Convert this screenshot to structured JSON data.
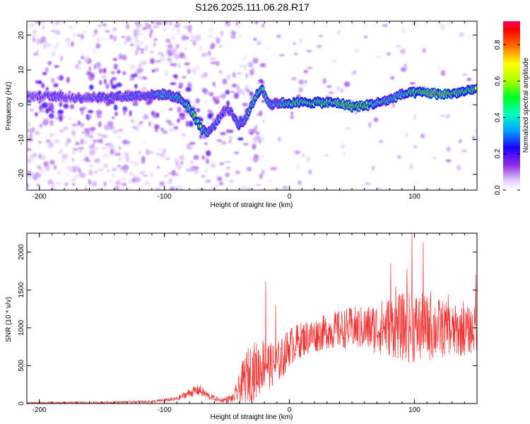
{
  "figure_title": "S126.2025.111.06.28.R17",
  "chart_data": [
    {
      "type": "heatmap",
      "title": "",
      "xlabel": "Height of straight line (km)",
      "ylabel": "Frequency (Hz)",
      "xlim": [
        -210,
        150
      ],
      "ylim": [
        -24.5,
        24
      ],
      "x_ticks": [
        -200,
        -100,
        0,
        100
      ],
      "y_ticks": [
        -20,
        -10,
        0,
        10,
        20
      ],
      "colorbar": {
        "label": "Normalized spectral amplitude",
        "range": [
          0,
          0.93
        ],
        "ticks": [
          0.0,
          0.2,
          0.4,
          0.6,
          0.8
        ],
        "tick_labels": [
          "0.0",
          "0.2",
          "0.4",
          "0.6",
          "0.8"
        ]
      },
      "ridge": {
        "x": [
          -205,
          -190,
          -170,
          -150,
          -130,
          -110,
          -100,
          -92,
          -85,
          -80,
          -75,
          -70,
          -65,
          -60,
          -55,
          -50,
          -45,
          -40,
          -35,
          -30,
          -26,
          -22,
          -18,
          -15,
          -10,
          0,
          10,
          20,
          30,
          40,
          50,
          60,
          70,
          80,
          90,
          100,
          110,
          120,
          130,
          140,
          150
        ],
        "freq": [
          2.5,
          2.5,
          2.0,
          2.2,
          2.5,
          2.8,
          3.0,
          2.5,
          1.0,
          -1.0,
          -4.0,
          -7.0,
          -8.0,
          -6.0,
          -3.0,
          -1.0,
          -3.0,
          -6.0,
          -4.0,
          0.0,
          3.0,
          5.0,
          1.5,
          0.0,
          0.5,
          0.5,
          0.6,
          0.7,
          0.6,
          0.5,
          -0.5,
          -0.3,
          0.5,
          1.5,
          3.0,
          3.5,
          3.5,
          3.0,
          3.2,
          3.8,
          4.5
        ],
        "amplitude": [
          0.25,
          0.3,
          0.3,
          0.35,
          0.35,
          0.4,
          0.45,
          0.5,
          0.55,
          0.7,
          0.75,
          0.65,
          0.5,
          0.4,
          0.3,
          0.3,
          0.35,
          0.45,
          0.5,
          0.55,
          0.6,
          0.7,
          0.5,
          0.45,
          0.45,
          0.7,
          0.75,
          0.7,
          0.72,
          0.75,
          0.85,
          0.8,
          0.6,
          0.55,
          0.55,
          0.75,
          0.8,
          0.85,
          0.8,
          0.75,
          0.7
        ]
      }
    },
    {
      "type": "line",
      "title": "",
      "xlabel": "Height of straight line (km)",
      "ylabel": "SNR (10 * v/v)",
      "xlim": [
        -210,
        150
      ],
      "ylim": [
        0,
        2250
      ],
      "x_ticks": [
        -200,
        -100,
        0,
        100
      ],
      "y_ticks": [
        0,
        500,
        1000,
        1500,
        2000
      ],
      "line_color": "#ee3333",
      "envelope": {
        "x": [
          -210,
          -150,
          -110,
          -90,
          -80,
          -72,
          -65,
          -55,
          -45,
          -40,
          -35,
          -30,
          -25,
          -20,
          -15,
          -10,
          -5,
          0,
          10,
          20,
          30,
          40,
          50,
          60,
          70,
          80,
          90,
          100,
          110,
          120,
          130,
          140,
          150
        ],
        "mean": [
          10,
          15,
          25,
          60,
          140,
          180,
          100,
          40,
          70,
          200,
          350,
          420,
          450,
          550,
          500,
          520,
          620,
          750,
          850,
          900,
          950,
          980,
          1000,
          990,
          1000,
          1020,
          1010,
          1000,
          990,
          1000,
          950,
          960,
          980
        ],
        "spread": [
          8,
          10,
          15,
          30,
          60,
          80,
          50,
          25,
          60,
          200,
          350,
          400,
          380,
          350,
          300,
          280,
          280,
          260,
          240,
          230,
          230,
          260,
          280,
          300,
          350,
          400,
          450,
          480,
          450,
          400,
          350,
          330,
          300
        ]
      },
      "peaks": [
        {
          "x": -19,
          "y": 1610
        },
        {
          "x": -11,
          "y": 1300
        },
        {
          "x": 81,
          "y": 1850
        },
        {
          "x": 85,
          "y": 1550
        },
        {
          "x": 94,
          "y": 1780
        },
        {
          "x": 98,
          "y": 2250
        },
        {
          "x": 107,
          "y": 2130
        },
        {
          "x": 113,
          "y": 1480
        },
        {
          "x": 127,
          "y": 1440
        },
        {
          "x": 139,
          "y": 1350
        },
        {
          "x": 149,
          "y": 1700
        }
      ]
    }
  ]
}
